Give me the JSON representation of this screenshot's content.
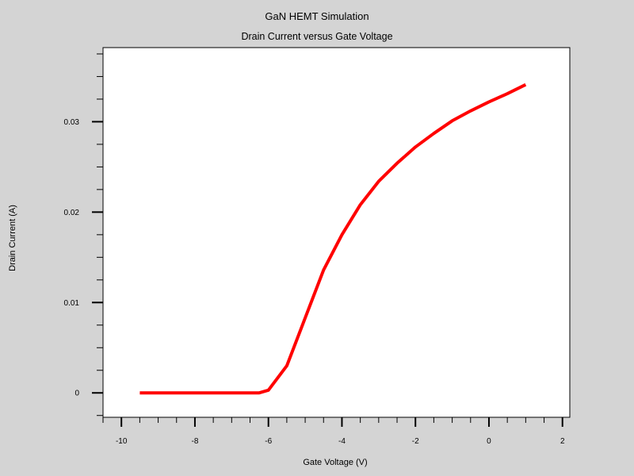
{
  "chart_data": {
    "type": "line",
    "title": "GaN HEMT Simulation",
    "subtitle": "Drain Current versus Gate Voltage",
    "xlabel": "Gate Voltage (V)",
    "ylabel": "Drain Current (A)",
    "xlim": [
      -10.5,
      2.2
    ],
    "ylim": [
      -0.0027,
      0.0382
    ],
    "x_ticks": [
      -10,
      -8,
      -6,
      -4,
      -2,
      0,
      2
    ],
    "x_tick_labels": [
      "-10",
      "-8",
      "-6",
      "-4",
      "-2",
      "0",
      "2"
    ],
    "y_ticks": [
      0,
      0.01,
      0.02,
      0.03
    ],
    "y_tick_labels": [
      "0",
      "0.01",
      "0.02",
      "0.03"
    ],
    "grid": false,
    "series": [
      {
        "color": "#ff0000",
        "x": [
          -9.5,
          -9,
          -8.5,
          -8,
          -7.5,
          -7,
          -6.5,
          -6.25,
          -6,
          -5.5,
          -5,
          -4.5,
          -4,
          -3.5,
          -3,
          -2.5,
          -2,
          -1.5,
          -1,
          -0.5,
          0,
          0.5,
          1
        ],
        "y": [
          0,
          0,
          0,
          0,
          0,
          0,
          0,
          0,
          0.0003,
          0.003,
          0.0083,
          0.0136,
          0.0175,
          0.0208,
          0.0234,
          0.0254,
          0.0272,
          0.0287,
          0.0301,
          0.0312,
          0.0322,
          0.0331,
          0.0341
        ]
      }
    ]
  }
}
